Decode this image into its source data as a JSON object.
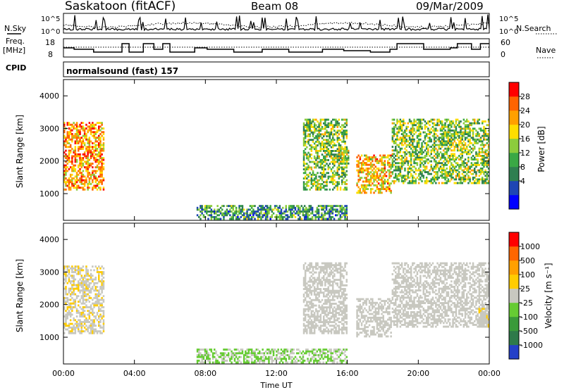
{
  "header": {
    "station": "Saskatoon (fitACF)",
    "beam": "Beam 08",
    "date": "09/Mar/2009"
  },
  "panels": {
    "nsky_label": "N.Sky",
    "nsearch_label": "N.Search",
    "freq_label_line1": "Freq.",
    "freq_label_line2": "[MHz]",
    "nave_label": "Nave",
    "cpid_label": "CPID",
    "cpid_value": "normalsound (fast) 157",
    "noise_ticks_left": [
      "10^5",
      "10^0"
    ],
    "noise_ticks_right": [
      "10^5",
      "10^0"
    ],
    "freq_ticks": [
      "18",
      "8"
    ],
    "nave_ticks": [
      "60",
      "0"
    ]
  },
  "colorbars": {
    "power": {
      "label": "Power [dB]",
      "ticks": [
        "28",
        "24",
        "20",
        "16",
        "12",
        "8",
        "4"
      ],
      "colors": [
        "#0000ff",
        "#1e46b4",
        "#2f7f50",
        "#3aa845",
        "#8ccc3c",
        "#ffdd00",
        "#ffa000",
        "#ff6400",
        "#ff0000"
      ]
    },
    "velocity": {
      "label": "Velocity [m s⁻¹]",
      "ticks": [
        "1000",
        "500",
        "100",
        "25",
        "-25",
        "-100",
        "-500",
        "-1000"
      ],
      "colors": [
        "#2440c8",
        "#2e7a4a",
        "#3a9a3a",
        "#66cc33",
        "#c8c8c0",
        "#ffcc00",
        "#ffa000",
        "#ff6600",
        "#ff0000"
      ]
    }
  },
  "axes": {
    "ylabel": "Slant Range [km]",
    "xlabel": "Time UT",
    "x_ticks": [
      "00:00",
      "04:00",
      "08:00",
      "12:00",
      "16:00",
      "20:00",
      "00:00"
    ],
    "y_ticks": [
      "1000",
      "2000",
      "3000",
      "4000"
    ]
  },
  "chart_data": [
    {
      "type": "heatmap",
      "name": "power",
      "xlabel": "Time UT",
      "ylabel": "Slant Range [km]",
      "xlim_hours": [
        0,
        24
      ],
      "ylim_km": [
        180,
        4500
      ],
      "value_label": "Power [dB]",
      "value_range": [
        0,
        30
      ],
      "regions": [
        {
          "t0": 0.0,
          "t1": 2.3,
          "r0": 1100,
          "r1": 3200,
          "value": 22
        },
        {
          "t0": 7.5,
          "t1": 16.0,
          "r0": 200,
          "r1": 650,
          "value": 10
        },
        {
          "t0": 13.5,
          "t1": 16.0,
          "r0": 1100,
          "r1": 3300,
          "value": 14
        },
        {
          "t0": 15.5,
          "t1": 16.1,
          "r0": 1900,
          "r1": 2400,
          "value": 16
        },
        {
          "t0": 16.5,
          "t1": 18.5,
          "r0": 1000,
          "r1": 2200,
          "value": 20
        },
        {
          "t0": 18.5,
          "t1": 24.0,
          "r0": 1300,
          "r1": 3300,
          "value": 14
        }
      ]
    },
    {
      "type": "heatmap",
      "name": "velocity",
      "xlabel": "Time UT",
      "ylabel": "Slant Range [km]",
      "xlim_hours": [
        0,
        24
      ],
      "ylim_km": [
        180,
        4500
      ],
      "value_label": "Velocity [m s-1]",
      "value_range": [
        -1000,
        1000
      ],
      "regions": [
        {
          "t0": 0.0,
          "t1": 2.3,
          "r0": 1100,
          "r1": 3200,
          "value": 80
        },
        {
          "t0": 7.5,
          "t1": 16.0,
          "r0": 200,
          "r1": 650,
          "value": -120
        },
        {
          "t0": 13.5,
          "t1": 16.0,
          "r0": 1100,
          "r1": 3300,
          "value": 0
        },
        {
          "t0": 16.5,
          "t1": 18.5,
          "r0": 1000,
          "r1": 2200,
          "value": 0
        },
        {
          "t0": 18.5,
          "t1": 24.0,
          "r0": 1300,
          "r1": 3300,
          "value": 0
        },
        {
          "t0": 23.3,
          "t1": 24.0,
          "r0": 1300,
          "r1": 1900,
          "value": 80
        }
      ]
    }
  ]
}
